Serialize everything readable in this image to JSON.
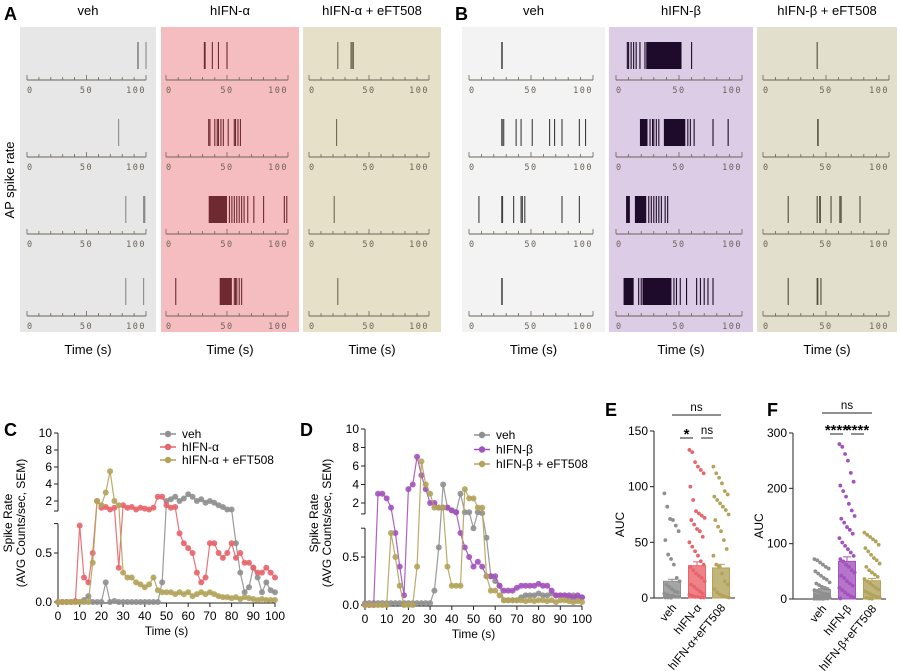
{
  "colors": {
    "veh": "#8f8f8f",
    "ifna": "#e8646c",
    "eft": "#b3a35a",
    "ifnb": "#a352bd",
    "bgA": [
      "#e7e7e7",
      "#f6bdc1",
      "#e6e0c9"
    ],
    "bgB": [
      "#f3f3f3",
      "#dccce6",
      "#e2dfcc"
    ],
    "spikeA": [
      "#8a8a8a",
      "#6e2a30",
      "#6d6650"
    ],
    "spikeB": [
      "#3d3d3d",
      "#1e0a2a",
      "#4f4b38"
    ]
  },
  "panelA": {
    "letter": "A",
    "titles": [
      "veh",
      "hIFN-α",
      "hIFN-α + eFT508"
    ],
    "ylabel": "AP spike rate",
    "xlabel": "Time (s)",
    "ticks": [
      "0",
      "50",
      "100"
    ],
    "rasters": [
      [
        {
          "spikes": [
            93,
            93.5,
            100
          ],
          "bursts": []
        },
        {
          "spikes": [
            77
          ],
          "bursts": []
        },
        {
          "spikes": [
            83,
            98,
            98.5,
            99
          ],
          "bursts": []
        },
        {
          "spikes": [
            83,
            98
          ],
          "bursts": []
        }
      ],
      [
        {
          "spikes": [
            38,
            43,
            50
          ],
          "bursts": [
            [
              31,
              32.5
            ]
          ]
        },
        {
          "spikes": [
            35,
            36,
            40,
            42,
            43,
            45,
            47,
            51,
            56,
            57,
            59,
            61
          ],
          "bursts": []
        },
        {
          "spikes": [
            52,
            54,
            56,
            58,
            60,
            62,
            64,
            67,
            72,
            80,
            97,
            99
          ],
          "bursts": [
            [
              35,
              50
            ]
          ]
        },
        {
          "spikes": [
            8,
            56,
            57,
            58,
            60,
            62
          ],
          "bursts": [
            [
              44,
              54
            ]
          ]
        }
      ],
      [
        {
          "spikes": [
            24,
            35,
            36,
            37
          ],
          "bursts": []
        },
        {
          "spikes": [
            23
          ],
          "bursts": []
        },
        {
          "spikes": [
            21
          ],
          "bursts": []
        },
        {
          "spikes": [
            24
          ],
          "bursts": []
        }
      ]
    ]
  },
  "panelB": {
    "letter": "B",
    "titles": [
      "veh",
      "hIFN-β",
      "hIFN-β + eFT508"
    ],
    "xlabel": "Time (s)",
    "ticks": [
      "0",
      "50",
      "100"
    ],
    "rasters": [
      [
        {
          "spikes": [],
          "bursts": [
            [
              26,
              27
            ]
          ]
        },
        {
          "spikes": [
            28,
            38,
            42,
            51,
            65,
            69,
            75,
            89,
            94
          ],
          "bursts": [
            [
              26,
              27
            ]
          ]
        },
        {
          "spikes": [
            8,
            36,
            42,
            43,
            45,
            75,
            89
          ],
          "bursts": [
            [
              26,
              27.5
            ]
          ]
        },
        {
          "spikes": [],
          "bursts": [
            [
              26,
              26.5
            ]
          ]
        }
      ],
      [
        {
          "spikes": [
            9,
            10,
            12,
            14,
            16,
            19,
            23,
            60
          ],
          "bursts": [
            [
              24,
              52
            ]
          ]
        },
        {
          "spikes": [
            27,
            29,
            30,
            32,
            34,
            57,
            59,
            62,
            77,
            89
          ],
          "bursts": [
            [
              19,
              25
            ],
            [
              38,
              55
            ]
          ]
        },
        {
          "spikes": [
            26,
            28,
            30,
            32,
            34,
            36,
            39,
            41
          ],
          "bursts": [
            [
              8,
              11
            ],
            [
              15,
              24
            ]
          ]
        },
        {
          "spikes": [
            18,
            20,
            46,
            48,
            51,
            56,
            64,
            67,
            70,
            73,
            77
          ],
          "bursts": [
            [
              6,
              14
            ],
            [
              21,
              44
            ]
          ]
        }
      ],
      [
        {
          "spikes": [
            43
          ],
          "bursts": []
        },
        {
          "spikes": [],
          "bursts": [
            [
              43,
              44
            ]
          ]
        },
        {
          "spikes": [
            20,
            43,
            45,
            45.5,
            54,
            61,
            62,
            77
          ],
          "bursts": []
        },
        {
          "spikes": [
            20,
            43,
            43.5,
            46
          ],
          "bursts": []
        }
      ]
    ]
  },
  "chart_data": [
    {
      "panel": "C",
      "type": "line",
      "xlabel": "Time (s)",
      "ylabel": [
        "Spike Rate",
        "(AVG Counts/sec, SEM)"
      ],
      "xlim": [
        0,
        100
      ],
      "xticks": [
        "0",
        "10",
        "20",
        "30",
        "40",
        "50",
        "60",
        "70",
        "80",
        "90",
        "100"
      ],
      "ylim_lower": [
        0,
        0.8
      ],
      "ylim_upper": [
        0.8,
        10
      ],
      "yticks_lower": [
        "0.0",
        "0.5"
      ],
      "yticks_upper": [
        "2",
        "4",
        "6",
        "8",
        "10"
      ],
      "legend_position": "top-right",
      "x_step": 2,
      "series": [
        {
          "name": "veh",
          "color_key": "veh",
          "values": [
            0,
            0,
            0,
            0,
            0,
            0,
            0.02,
            0.06,
            0,
            0,
            0,
            0.2,
            0,
            0.01,
            0,
            0,
            0,
            0,
            0,
            0,
            0,
            0,
            0,
            0,
            0.2,
            2.0,
            2.2,
            2.5,
            2.0,
            2.3,
            2.8,
            2.5,
            2.0,
            2.2,
            1.8,
            2.0,
            1.8,
            1.5,
            1.3,
            1.0,
            1.0,
            0.6,
            0.3,
            0.1,
            0.15,
            0.35,
            0.25,
            0.1,
            0.2,
            0.12,
            0.1
          ]
        },
        {
          "name": "hIFN-α",
          "color_key": "ifna",
          "values": [
            0,
            0,
            0,
            0,
            0.01,
            0.78,
            0.25,
            0.2,
            0.5,
            2.0,
            1.2,
            1.3,
            1.0,
            1.2,
            0.35,
            1.5,
            1.2,
            1.3,
            1.0,
            1.2,
            1.1,
            1.0,
            1.2,
            2.5,
            2.5,
            1.5,
            1.2,
            1.3,
            0.7,
            0.6,
            0.55,
            0.5,
            0.3,
            0.2,
            0.25,
            0.6,
            0.6,
            0.5,
            0.45,
            0.5,
            0.6,
            0.45,
            0.5,
            0.4,
            0.4,
            0.35,
            0.3,
            0.3,
            0.35,
            0.3,
            0.25
          ]
        },
        {
          "name": "hIFN-α + eFT508",
          "color_key": "eft",
          "values": [
            0,
            0,
            0,
            0,
            0,
            0,
            0,
            0,
            0.4,
            2.0,
            1.5,
            3.0,
            5.5,
            2.0,
            1.5,
            0.3,
            0.25,
            0.25,
            0.2,
            0.18,
            0.15,
            0.18,
            0.25,
            0.12,
            0.1,
            0.1,
            0.1,
            0.08,
            0.1,
            0.08,
            0.1,
            0.06,
            0.08,
            0.1,
            0.08,
            0.1,
            0.08,
            0.06,
            0.05,
            0.05,
            0.04,
            0.05,
            0.03,
            0.05,
            0.04,
            0.03,
            0.02,
            0.03,
            0.02,
            0.02,
            0.02
          ]
        }
      ]
    },
    {
      "panel": "D",
      "type": "line",
      "xlabel": "Time (s)",
      "ylabel": [
        "Spike Rate",
        "(AVG Counts/sec, SEM)"
      ],
      "xlim": [
        0,
        100
      ],
      "xticks": [
        "0",
        "10",
        "20",
        "30",
        "40",
        "50",
        "60",
        "70",
        "80",
        "90",
        "100"
      ],
      "ylim_lower": [
        0,
        0.8
      ],
      "ylim_upper": [
        0.8,
        10
      ],
      "yticks_lower": [
        "0.0",
        "0.5"
      ],
      "yticks_upper": [
        "2",
        "4",
        "6",
        "8",
        "10"
      ],
      "legend_position": "top-right",
      "x_step": 2,
      "series": [
        {
          "name": "veh",
          "color_key": "veh",
          "values": [
            0.02,
            0.02,
            0.02,
            0.02,
            0.02,
            0.02,
            0.02,
            0.02,
            0.02,
            0.02,
            0.02,
            0.02,
            0.02,
            0.02,
            0.02,
            0.02,
            0.15,
            0.6,
            4.0,
            1.5,
            1.2,
            1.0,
            3.0,
            1.0,
            1.0,
            0.8,
            1.0,
            0.9,
            0.7,
            0.3,
            0.25,
            0.2,
            0.05,
            0.05,
            0.05,
            0.05,
            0.08,
            0.1,
            0.1,
            0.1,
            0.12,
            0.1,
            0.1,
            0.12,
            0.1,
            0.1,
            0.1,
            0.08,
            0.1,
            0.08,
            0.08
          ]
        },
        {
          "name": "hIFN-β",
          "color_key": "ifnb",
          "values": [
            0,
            0,
            0,
            3.0,
            3.0,
            2.5,
            1.5,
            0.75,
            0.4,
            0.1,
            3.5,
            4.0,
            7.0,
            5.0,
            3.5,
            2.0,
            2.0,
            1.5,
            1.5,
            1.5,
            1.2,
            1.0,
            0.75,
            0.6,
            0.5,
            0.4,
            0.45,
            0.4,
            0.3,
            0.3,
            0.3,
            0.2,
            0.15,
            0.15,
            0.15,
            0.18,
            0.2,
            0.2,
            0.2,
            0.2,
            0.22,
            0.2,
            0.2,
            0.15,
            0.1,
            0.1,
            0.1,
            0.1,
            0.08,
            0.1,
            0.08
          ]
        },
        {
          "name": "hIFN-β + eFT508",
          "color_key": "eft",
          "values": [
            0,
            0,
            0,
            0,
            0,
            0,
            0.75,
            0.5,
            0.2,
            0,
            0,
            0,
            0.4,
            6.5,
            4.0,
            3.0,
            1.5,
            1.5,
            1.5,
            0.4,
            0.2,
            0.2,
            0.2,
            3.5,
            2.5,
            2.5,
            1.5,
            1.5,
            0.3,
            0.15,
            0.15,
            0.1,
            0.05,
            0.05,
            0.05,
            0.05,
            0.05,
            0.04,
            0.05,
            0.04,
            0.05,
            0.05,
            0.04,
            0.05,
            0.03,
            0.05,
            0.05,
            0.04,
            0.03,
            0.04,
            0.03
          ]
        }
      ]
    },
    {
      "panel": "E",
      "type": "bar",
      "ylabel": "AUC",
      "ylim": [
        0,
        150
      ],
      "yticks": [
        "0",
        "50",
        "100",
        "150"
      ],
      "categories": [
        "veh",
        "hIFN-α",
        "hIFN-α+eFT508"
      ],
      "color_keys": [
        "veh",
        "ifna",
        "eft"
      ],
      "values": [
        15,
        29,
        27
      ],
      "points": [
        [
          94,
          82,
          71,
          70,
          65,
          60,
          52,
          39,
          35,
          30,
          18,
          15,
          12,
          10,
          8,
          6,
          5,
          4,
          3,
          2,
          2,
          1,
          1,
          0.5,
          0.5,
          0.2
        ],
        [
          133,
          131,
          122,
          118,
          115,
          112,
          100,
          88,
          78,
          76,
          74,
          72,
          70,
          66,
          62,
          60,
          55,
          50,
          46,
          42,
          38,
          33,
          30,
          28,
          25,
          22,
          20,
          18,
          15,
          12,
          10,
          8,
          6,
          4,
          3,
          2,
          1,
          1,
          0.5,
          0.5
        ],
        [
          118,
          112,
          108,
          103,
          96,
          93,
          91,
          88,
          85,
          82,
          79,
          75,
          70,
          64,
          60,
          52,
          44,
          38,
          30,
          28,
          22,
          15,
          12,
          8,
          5,
          3,
          2,
          1,
          0.5
        ]
      ],
      "significance": [
        {
          "between": [
            0,
            2
          ],
          "label": "ns"
        },
        {
          "between": [
            0,
            1
          ],
          "label": "*"
        },
        {
          "between": [
            1,
            2
          ],
          "label": "ns"
        }
      ]
    },
    {
      "panel": "F",
      "type": "bar",
      "ylabel": "AUC",
      "ylim": [
        0,
        300
      ],
      "yticks": [
        "0",
        "100",
        "200",
        "300"
      ],
      "categories": [
        "veh",
        "hIFN-β",
        "hIFN-β+eFT508"
      ],
      "color_keys": [
        "veh",
        "ifnb",
        "eft"
      ],
      "values": [
        17,
        68,
        33
      ],
      "points": [
        [
          72,
          70,
          66,
          62,
          58,
          55,
          50,
          46,
          42,
          38,
          35,
          30,
          28,
          25,
          22,
          20,
          18,
          16,
          14,
          12,
          10,
          9,
          8,
          7,
          6,
          5,
          4,
          3,
          3,
          2,
          2,
          1,
          1,
          1,
          0.5,
          0.5,
          0.5,
          0.2
        ],
        [
          280,
          275,
          262,
          250,
          228,
          212,
          205,
          195,
          185,
          172,
          160,
          150,
          145,
          138,
          130,
          125,
          118,
          110,
          102,
          96,
          90,
          84,
          78,
          72,
          68,
          62,
          58,
          52,
          48,
          42,
          38,
          32,
          28,
          24,
          20,
          16,
          12,
          8,
          5,
          3,
          1
        ],
        [
          120,
          116,
          112,
          108,
          104,
          98,
          92,
          86,
          80,
          74,
          70,
          64,
          58,
          52,
          48,
          44,
          40,
          36,
          32,
          28,
          24,
          20,
          17,
          14,
          11,
          8,
          6,
          4,
          3,
          2,
          1,
          0.5
        ]
      ],
      "significance": [
        {
          "between": [
            0,
            2
          ],
          "label": "ns"
        },
        {
          "between": [
            0,
            1
          ],
          "label": "****"
        },
        {
          "between": [
            1,
            2
          ],
          "label": "****"
        }
      ]
    }
  ]
}
